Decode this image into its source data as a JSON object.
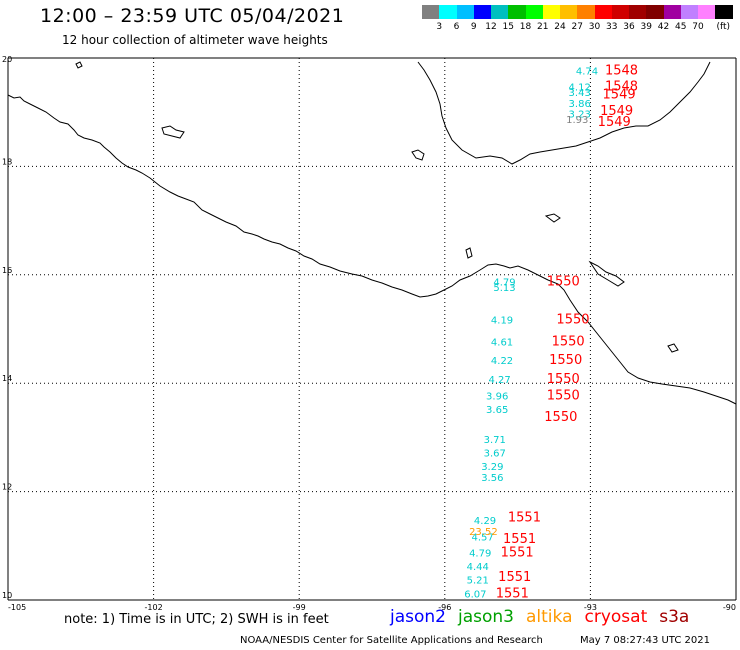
{
  "header": {
    "title": "12:00 – 23:59 UTC 05/04/2021",
    "subtitle": "12 hour collection of altimeter wave heights"
  },
  "scale": {
    "colors": [
      "#808080",
      "#00ffff",
      "#00bfff",
      "#0000ff",
      "#00bfbf",
      "#00bf00",
      "#00ff00",
      "#ffff00",
      "#ffbf00",
      "#ff8000",
      "#ff0000",
      "#d00000",
      "#a00000",
      "#800000",
      "#a000a0",
      "#c080ff",
      "#ff80ff",
      "#000000"
    ],
    "labels": [
      "3",
      "6",
      "9",
      "12",
      "15",
      "18",
      "21",
      "24",
      "27",
      "30",
      "33",
      "36",
      "39",
      "42",
      "45",
      "70",
      "(ft)"
    ]
  },
  "axes": {
    "lat_labels": [
      "20",
      "18",
      "16",
      "14",
      "12",
      "10"
    ],
    "lon_labels": [
      "-105",
      "-102",
      "-99",
      "-96",
      "-93",
      "-90"
    ]
  },
  "observations": {
    "swh_cyan": [
      {
        "text": "4.74",
        "lon": -93.3,
        "lat": 19.7
      },
      {
        "text": "4.12",
        "lon": -93.45,
        "lat": 19.4
      },
      {
        "text": "3.43",
        "lon": -93.45,
        "lat": 19.3
      },
      {
        "text": "3.86",
        "lon": -93.45,
        "lat": 19.1
      },
      {
        "text": "3.23",
        "lon": -93.45,
        "lat": 18.9
      },
      {
        "text": "4.79",
        "lon": -95.0,
        "lat": 15.8
      },
      {
        "text": "5.13",
        "lon": -95.0,
        "lat": 15.7
      },
      {
        "text": "4.19",
        "lon": -95.05,
        "lat": 15.1
      },
      {
        "text": "4.61",
        "lon": -95.05,
        "lat": 14.7
      },
      {
        "text": "4.22",
        "lon": -95.05,
        "lat": 14.35
      },
      {
        "text": "4.27",
        "lon": -95.1,
        "lat": 14.0
      },
      {
        "text": "3.96",
        "lon": -95.15,
        "lat": 13.7
      },
      {
        "text": "3.65",
        "lon": -95.15,
        "lat": 13.45
      },
      {
        "text": "3.71",
        "lon": -95.2,
        "lat": 12.9
      },
      {
        "text": "3.67",
        "lon": -95.2,
        "lat": 12.65
      },
      {
        "text": "3.29",
        "lon": -95.25,
        "lat": 12.4
      },
      {
        "text": "3.56",
        "lon": -95.25,
        "lat": 12.2
      },
      {
        "text": "4.29",
        "lon": -95.4,
        "lat": 11.4
      },
      {
        "text": "4.57",
        "lon": -95.45,
        "lat": 11.1
      },
      {
        "text": "4.79",
        "lon": -95.5,
        "lat": 10.8
      },
      {
        "text": "4.44",
        "lon": -95.55,
        "lat": 10.55
      },
      {
        "text": "5.21",
        "lon": -95.55,
        "lat": 10.3
      },
      {
        "text": "6.07",
        "lon": -95.6,
        "lat": 10.05
      }
    ],
    "swh_gray": [
      {
        "text": "1.93",
        "lon": -93.5,
        "lat": 18.8
      }
    ],
    "swh_orange": [
      {
        "text": "23.52",
        "lon": -95.5,
        "lat": 11.2
      }
    ],
    "time_red": [
      {
        "text": "1548",
        "lon": -92.7,
        "lat": 19.7
      },
      {
        "text": "1548",
        "lon": -92.7,
        "lat": 19.4
      },
      {
        "text": "1549",
        "lon": -92.75,
        "lat": 19.25
      },
      {
        "text": "1549",
        "lon": -92.8,
        "lat": 18.95
      },
      {
        "text": "1549",
        "lon": -92.85,
        "lat": 18.75
      },
      {
        "text": "1550",
        "lon": -93.9,
        "lat": 15.8
      },
      {
        "text": "1550",
        "lon": -93.7,
        "lat": 15.1
      },
      {
        "text": "1550",
        "lon": -93.8,
        "lat": 14.7
      },
      {
        "text": "1550",
        "lon": -93.85,
        "lat": 14.35
      },
      {
        "text": "1550",
        "lon": -93.9,
        "lat": 14.0
      },
      {
        "text": "1550",
        "lon": -93.9,
        "lat": 13.7
      },
      {
        "text": "1550",
        "lon": -93.95,
        "lat": 13.3
      },
      {
        "text": "1551",
        "lon": -94.7,
        "lat": 11.45
      },
      {
        "text": "1551",
        "lon": -94.8,
        "lat": 11.05
      },
      {
        "text": "1551",
        "lon": -94.85,
        "lat": 10.8
      },
      {
        "text": "1551",
        "lon": -94.9,
        "lat": 10.35
      },
      {
        "text": "1551",
        "lon": -94.95,
        "lat": 10.05
      }
    ]
  },
  "footer": {
    "note": "note: 1) Time is in UTC; 2) SWH is in feet",
    "missions": [
      {
        "name": "jason2",
        "color": "#0000ff"
      },
      {
        "name": "jason3",
        "color": "#00a000"
      },
      {
        "name": "altika",
        "color": "#ff9900"
      },
      {
        "name": "cryosat",
        "color": "#ff0000"
      },
      {
        "name": "s3a",
        "color": "#a00000"
      }
    ],
    "credit": "NOAA/NESDIS Center for Satellite Applications and Research",
    "timestamp": "May  7 08:27:43 UTC 2021"
  },
  "colors": {
    "swh_cyan": "#00cccc",
    "swh_gray": "#808080",
    "swh_orange": "#ff9900",
    "time_red": "#ff0000"
  }
}
